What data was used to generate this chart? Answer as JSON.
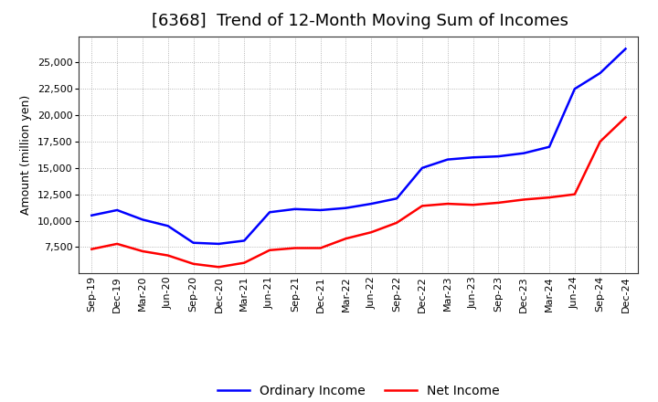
{
  "title": "[6368]  Trend of 12-Month Moving Sum of Incomes",
  "ylabel": "Amount (million yen)",
  "x_labels": [
    "Sep-19",
    "Dec-19",
    "Mar-20",
    "Jun-20",
    "Sep-20",
    "Dec-20",
    "Mar-21",
    "Jun-21",
    "Sep-21",
    "Dec-21",
    "Mar-22",
    "Jun-22",
    "Sep-22",
    "Dec-22",
    "Mar-23",
    "Jun-23",
    "Sep-23",
    "Dec-23",
    "Mar-24",
    "Jun-24",
    "Sep-24",
    "Dec-24"
  ],
  "ordinary_income": [
    10500,
    11000,
    10100,
    9500,
    7900,
    7800,
    8100,
    10800,
    11100,
    11000,
    11200,
    11600,
    12100,
    15000,
    15800,
    16000,
    16100,
    16400,
    17000,
    22500,
    24000,
    26300
  ],
  "net_income": [
    7300,
    7800,
    7100,
    6700,
    5900,
    5600,
    6000,
    7200,
    7400,
    7400,
    8300,
    8900,
    9800,
    11400,
    11600,
    11500,
    11700,
    12000,
    12200,
    12500,
    17500,
    19800
  ],
  "ordinary_color": "#0000FF",
  "net_color": "#FF0000",
  "ylim_min": 5000,
  "ylim_max": 27500,
  "yticks": [
    7500,
    10000,
    12500,
    15000,
    17500,
    20000,
    22500,
    25000
  ],
  "background_color": "#ffffff",
  "grid_color": "#999999",
  "title_fontsize": 13,
  "ylabel_fontsize": 9,
  "tick_fontsize": 8,
  "legend_fontsize": 10,
  "line_width": 1.8
}
